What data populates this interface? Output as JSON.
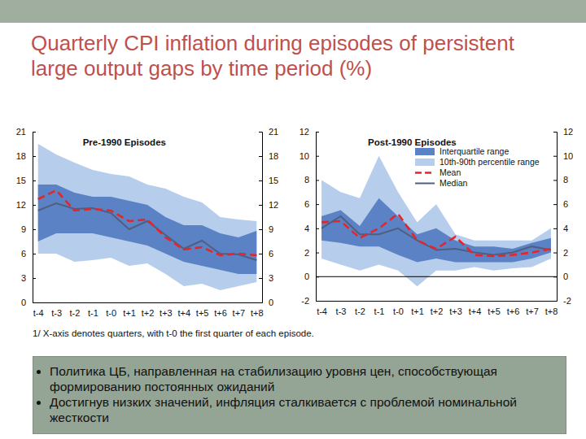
{
  "title": "Quarterly CPI inflation during episodes of persistent large output gaps by time period (%)",
  "footnote": "1/ X-axis denotes quarters, with t-0 the first quarter of each episode.",
  "notes": [
    "Политика ЦБ, направленная на стабилизацию уровня цен, способствующая формированию постоянных ожиданий",
    "Достигнув низких значений, инфляция сталкивается с проблемой номинальной жесткости"
  ],
  "chart_data": [
    {
      "type": "line",
      "title": "Pre-1990 Episodes",
      "categories": [
        "t-4",
        "t-3",
        "t-2",
        "t-1",
        "t-0",
        "t+1",
        "t+2",
        "t+3",
        "t+4",
        "t+5",
        "t+6",
        "t+7",
        "t+8"
      ],
      "ylim": [
        0,
        21
      ],
      "yticks": [
        0,
        3,
        6,
        9,
        12,
        15,
        18,
        21
      ],
      "series": [
        {
          "type": "band",
          "color": "#5b82c4",
          "low": [
            7.5,
            8.5,
            8.5,
            8.5,
            8.0,
            7.5,
            7.0,
            6.0,
            5.0,
            4.5,
            4.0,
            3.5,
            3.5
          ],
          "high": [
            14.5,
            14.5,
            13.5,
            13.0,
            13.0,
            12.5,
            12.0,
            10.5,
            9.5,
            9.5,
            8.5,
            8.0,
            8.8
          ]
        },
        {
          "type": "band",
          "color": "#b6cdec",
          "low": [
            6.0,
            6.0,
            5.0,
            5.2,
            5.5,
            4.5,
            4.8,
            3.5,
            2.0,
            2.3,
            1.5,
            2.0,
            2.5
          ],
          "high": [
            19.5,
            18.2,
            17.2,
            16.3,
            15.8,
            15.5,
            14.5,
            14.0,
            13.0,
            12.3,
            10.5,
            10.2,
            10.0
          ]
        },
        {
          "type": "line",
          "color": "#e3262b",
          "line_style": "dashed",
          "values": [
            12.7,
            13.8,
            11.3,
            11.5,
            11.3,
            10.0,
            10.2,
            8.0,
            6.5,
            6.8,
            5.8,
            6.0,
            5.8
          ]
        },
        {
          "type": "line",
          "color": "#4f5f80",
          "line_style": "solid",
          "values": [
            11.3,
            12.2,
            11.5,
            11.6,
            11.0,
            9.0,
            10.0,
            8.3,
            6.6,
            7.6,
            6.0,
            5.9,
            5.2
          ]
        }
      ]
    },
    {
      "type": "line",
      "title": "Post-1990 Episodes",
      "categories": [
        "t-4",
        "t-3",
        "t-2",
        "t-1",
        "t-0",
        "t+1",
        "t+2",
        "t+3",
        "t+4",
        "t+5",
        "t+6",
        "t+7",
        "t+8"
      ],
      "ylim": [
        -2,
        12
      ],
      "yticks": [
        -2,
        0,
        2,
        4,
        6,
        8,
        10,
        12
      ],
      "legend": "upper right",
      "series": [
        {
          "name": "Interquartile range",
          "type": "band",
          "color": "#5b82c4",
          "low": [
            3.0,
            2.8,
            2.5,
            2.5,
            1.8,
            1.2,
            1.5,
            1.2,
            1.2,
            1.2,
            1.2,
            1.5,
            2.0
          ],
          "high": [
            5.0,
            5.5,
            4.2,
            6.5,
            5.0,
            3.5,
            4.0,
            3.0,
            2.5,
            2.5,
            2.3,
            2.8,
            3.2
          ]
        },
        {
          "name": "10th-90th percentile range",
          "type": "band",
          "color": "#b6cdec",
          "low": [
            1.5,
            1.0,
            0.5,
            1.0,
            0.5,
            -0.8,
            0.5,
            0.5,
            0.8,
            0.5,
            0.7,
            0.8,
            1.5
          ],
          "high": [
            8.0,
            7.0,
            6.5,
            10.0,
            7.0,
            4.5,
            6.0,
            3.5,
            3.0,
            3.0,
            3.0,
            3.0,
            4.0
          ]
        },
        {
          "name": "Mean",
          "type": "line",
          "color": "#e3262b",
          "line_style": "dashed",
          "values": [
            4.5,
            4.6,
            3.2,
            4.0,
            5.2,
            3.0,
            2.3,
            3.3,
            1.8,
            1.7,
            1.8,
            2.0,
            2.3
          ]
        },
        {
          "name": "Median",
          "type": "line",
          "color": "#4f5f80",
          "line_style": "solid",
          "values": [
            4.0,
            5.0,
            3.5,
            3.5,
            4.0,
            3.0,
            2.2,
            2.3,
            2.0,
            1.8,
            2.0,
            2.5,
            2.2
          ]
        }
      ]
    }
  ]
}
